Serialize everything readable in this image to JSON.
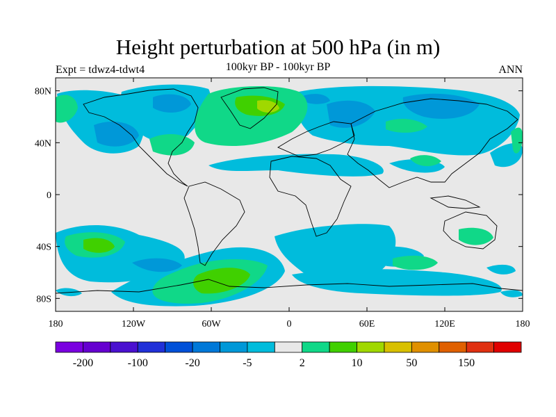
{
  "title": "Height perturbation at 500 hPa (in m)",
  "left_label": "Expt = tdwz4-tdwt4",
  "center_label": "100kyr BP - 100kyr BP",
  "right_label": "ANN",
  "map": {
    "projection": "cylindrical-equidistant",
    "lon_range": [
      -180,
      180
    ],
    "lat_range": [
      -90,
      90
    ],
    "background_color": "#e8e8e8",
    "lat_ticks": [
      "80N",
      "40N",
      "0",
      "40S",
      "80S"
    ],
    "lon_ticks": [
      "180",
      "120W",
      "60W",
      "0",
      "60E",
      "120E",
      "180"
    ]
  },
  "colorbar": {
    "colors": [
      "#7a00e0",
      "#6500d0",
      "#4a10d0",
      "#2030d8",
      "#0050d8",
      "#0078d8",
      "#0098d8",
      "#00bcdc",
      "#e8e8e8",
      "#10d888",
      "#40d000",
      "#a0d800",
      "#d8c000",
      "#e09000",
      "#e06000",
      "#e03010",
      "#e00000"
    ],
    "labels": [
      "-200",
      "-100",
      "-20",
      "-5",
      "2",
      "10",
      "50",
      "150"
    ]
  }
}
